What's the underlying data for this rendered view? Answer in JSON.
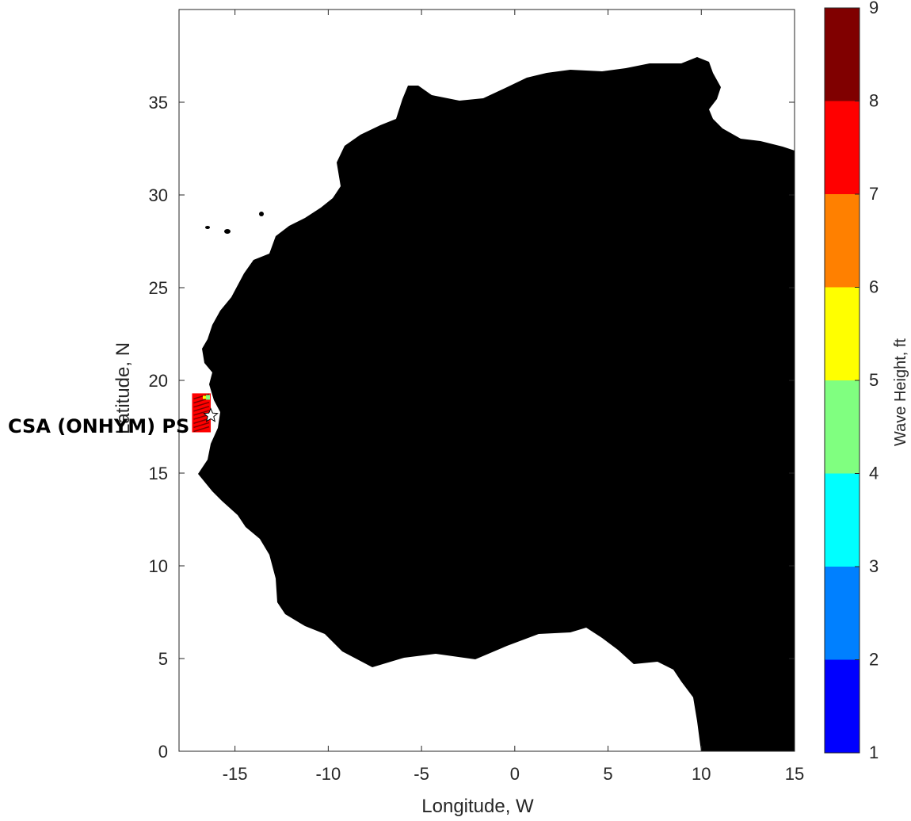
{
  "chart_data": {
    "type": "heatmap",
    "x_axis": {
      "label": "Longitude, W",
      "range": [
        -18,
        15
      ],
      "ticks": [
        -15,
        -10,
        -5,
        0,
        5,
        10,
        15
      ]
    },
    "y_axis": {
      "label": "Latitude, N",
      "range": [
        0,
        40
      ],
      "ticks": [
        0,
        5,
        10,
        15,
        20,
        25,
        30,
        35
      ]
    },
    "grid": false,
    "colorbar": {
      "label": "Wave Height, ft",
      "ticks": [
        1,
        2,
        3,
        4,
        5,
        6,
        7,
        8,
        9
      ],
      "bins": [
        {
          "from": 1,
          "to": 2,
          "color": "#0000ff"
        },
        {
          "from": 2,
          "to": 3,
          "color": "#0080ff"
        },
        {
          "from": 3,
          "to": 4,
          "color": "#00ffff"
        },
        {
          "from": 4,
          "to": 5,
          "color": "#80ff80"
        },
        {
          "from": 5,
          "to": 6,
          "color": "#ffff00"
        },
        {
          "from": 6,
          "to": 7,
          "color": "#ff8000"
        },
        {
          "from": 7,
          "to": 8,
          "color": "#ff0000"
        },
        {
          "from": 8,
          "to": 9,
          "color": "#800000"
        }
      ]
    },
    "site_marker": {
      "label": "CSA (ONHYM) PS",
      "lon": -16.3,
      "lat": 18.1,
      "symbol": "star"
    },
    "wave_patch": {
      "lon_range": [
        -17.3,
        -16.3
      ],
      "lat_range": [
        17.2,
        19.3
      ],
      "dominant_color": "#ff0000"
    },
    "land_color": "#000000",
    "ocean_color": "#ffffff"
  }
}
